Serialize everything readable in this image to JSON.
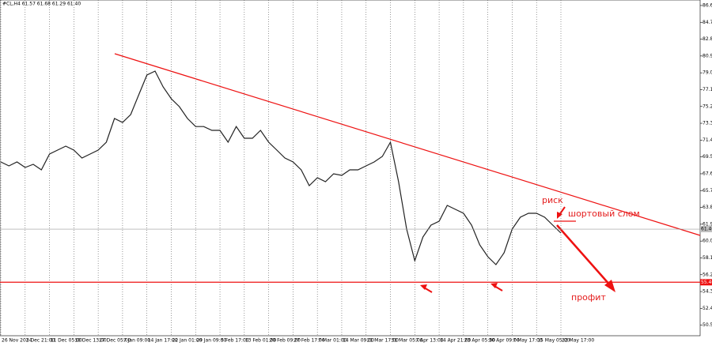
{
  "chart_data": {
    "type": "line",
    "title": "#CL,H4 61.57 61.68 61.29 61.40",
    "categories": [
      "26 Nov 2024",
      null,
      null,
      "3 Dec 21:00",
      null,
      null,
      "11 Dec 05:00",
      null,
      null,
      "18 Dec 13:00",
      null,
      null,
      "27 Dec 05:00",
      null,
      null,
      "7 Jan 09:00",
      null,
      null,
      "14 Jan 17:00",
      null,
      null,
      "22 Jan 01:00",
      null,
      null,
      "29 Jan 09:00",
      null,
      null,
      "5 Feb 17:00",
      null,
      null,
      "13 Feb 01:00",
      null,
      null,
      "20 Feb 09:00",
      null,
      null,
      "27 Feb 17:00",
      null,
      null,
      "7 Mar 01:00",
      null,
      null,
      "14 Mar 09:00",
      null,
      null,
      "21 Mar 17:00",
      null,
      null,
      "31 Mar 05:00",
      null,
      null,
      "7 Apr 13:00",
      null,
      null,
      "14 Apr 21:00",
      null,
      null,
      "23 Apr 05:00",
      null,
      null,
      "30 Apr 09:00",
      null,
      null,
      "7 May 17:00",
      null,
      null,
      "15 May 05:00",
      null,
      null,
      "22 May 17:00"
    ],
    "values": [
      68.98,
      68.54,
      68.98,
      68.36,
      68.72,
      68.09,
      69.88,
      70.32,
      70.77,
      70.32,
      69.43,
      69.88,
      70.32,
      71.21,
      73.89,
      73.44,
      74.34,
      76.57,
      78.8,
      79.24,
      77.46,
      76.12,
      75.23,
      73.89,
      72.98,
      72.98,
      72.55,
      72.55,
      71.21,
      72.98,
      71.66,
      71.66,
      72.55,
      71.21,
      70.32,
      69.43,
      68.98,
      68.09,
      66.31,
      67.2,
      66.75,
      67.65,
      67.47,
      68.09,
      68.09,
      68.54,
      68.98,
      69.61,
      71.21,
      66.75,
      61.4,
      57.83,
      60.51,
      61.85,
      62.29,
      64.08,
      63.63,
      63.19,
      61.85,
      59.62,
      58.28,
      57.39,
      58.73,
      61.4,
      62.74,
      63.19,
      63.19,
      62.74,
      61.85,
      60.96
    ],
    "color": "#222222",
    "ylim": [
      49.36,
      87.27
    ],
    "yticks": [
      86.65,
      84.75,
      82.85,
      80.95,
      79.05,
      77.15,
      75.25,
      73.35,
      71.45,
      69.55,
      67.65,
      65.75,
      63.85,
      61.95,
      60.05,
      58.15,
      56.25,
      54.35,
      52.45,
      50.55
    ],
    "current_price": {
      "value": 61.4,
      "label": "61.40"
    },
    "level": {
      "value": 55.4,
      "label": "55.40"
    },
    "annotations": [
      "риск",
      "шортовый слом",
      "профит"
    ]
  }
}
